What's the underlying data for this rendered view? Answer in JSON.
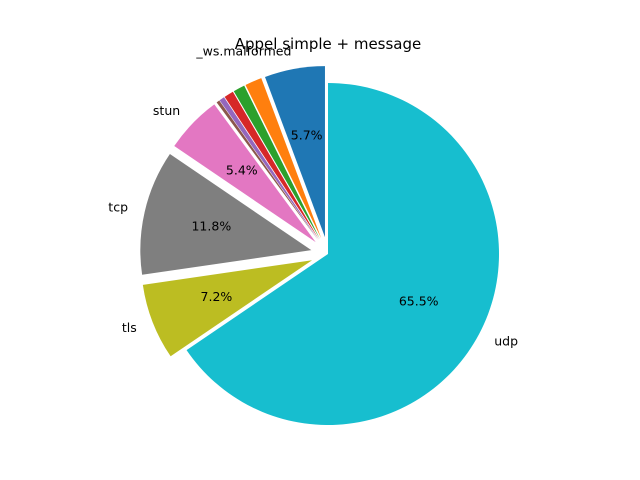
{
  "chart_data": {
    "type": "pie",
    "title": "Appel simple + message",
    "start_angle_deg": 90,
    "direction": "counterclockwise",
    "legend": "none",
    "slices": [
      {
        "label": "_ws.malformed",
        "value": 5.7,
        "pct_label": "5.7%",
        "color": "#1f77b4",
        "exploded": true
      },
      {
        "label": "",
        "value": 1.6,
        "pct_label": "",
        "color": "#ff7f0e",
        "exploded": true
      },
      {
        "label": "",
        "value": 1.1,
        "pct_label": "",
        "color": "#2ca02c",
        "exploded": true
      },
      {
        "label": "",
        "value": 0.9,
        "pct_label": "",
        "color": "#d62728",
        "exploded": true
      },
      {
        "label": "",
        "value": 0.5,
        "pct_label": "",
        "color": "#9467bd",
        "exploded": true
      },
      {
        "label": "",
        "value": 0.3,
        "pct_label": "",
        "color": "#8c564b",
        "exploded": true
      },
      {
        "label": "stun",
        "value": 5.4,
        "pct_label": "5.4%",
        "color": "#e377c2",
        "exploded": true
      },
      {
        "label": "tcp",
        "value": 11.8,
        "pct_label": "11.8%",
        "color": "#7f7f7f",
        "exploded": true
      },
      {
        "label": "tls",
        "value": 7.2,
        "pct_label": "7.2%",
        "color": "#bcbd22",
        "exploded": true
      },
      {
        "label": "udp",
        "value": 65.5,
        "pct_label": "65.5%",
        "color": "#17becf",
        "exploded": false
      }
    ]
  }
}
